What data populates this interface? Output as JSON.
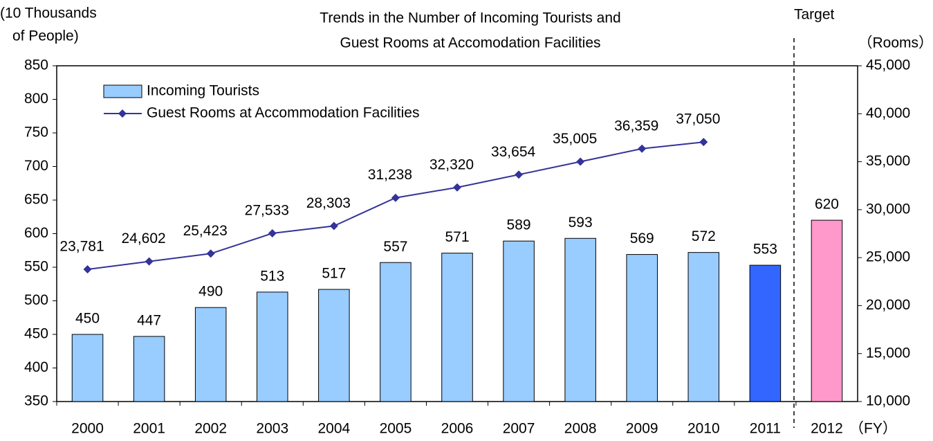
{
  "chart_data": {
    "type": "bar_line",
    "title": [
      "Trends in the Number of Incoming Tourists and",
      "Guest Rooms at Accomodation Facilities"
    ],
    "y_label": [
      "(10 Thousands",
      "of People)"
    ],
    "y2_label": "（Rooms）",
    "x_label": "（FY）",
    "annotation": "Target",
    "categories": [
      "2000",
      "2001",
      "2002",
      "2003",
      "2004",
      "2005",
      "2006",
      "2007",
      "2008",
      "2009",
      "2010",
      "2011",
      "2012"
    ],
    "series": [
      {
        "name": "Incoming Tourists",
        "color": "#99ccff",
        "colors": [
          "#99ccff",
          "#99ccff",
          "#99ccff",
          "#99ccff",
          "#99ccff",
          "#99ccff",
          "#99ccff",
          "#99ccff",
          "#99ccff",
          "#99ccff",
          "#99ccff",
          "#3366ff",
          "#ff99cc"
        ],
        "values": [
          450,
          447,
          490,
          513,
          517,
          557,
          571,
          589,
          593,
          569,
          572,
          553,
          620
        ]
      },
      {
        "name": "Guest Rooms at Accommodation Facilities",
        "color": "#333399",
        "axis": "y2",
        "values": [
          23781,
          24602,
          25423,
          27533,
          28303,
          31238,
          32320,
          33654,
          35005,
          36359,
          37050,
          null,
          null
        ],
        "value_labels": [
          "23,781",
          "24,602",
          "25,423",
          "27,533",
          "28,303",
          "31,238",
          "32,320",
          "33,654",
          "35,005",
          "36,359",
          "37,050",
          null,
          null
        ]
      }
    ],
    "ylim": [
      350,
      850
    ],
    "yticks": [
      350,
      400,
      450,
      500,
      550,
      600,
      650,
      700,
      750,
      800,
      850
    ],
    "y2lim": [
      10000,
      45000
    ],
    "y2ticks": [
      {
        "value": 10000,
        "label": "10,000"
      },
      {
        "value": 15000,
        "label": "15,000"
      },
      {
        "value": 20000,
        "label": "20,000"
      },
      {
        "value": 25000,
        "label": "25,000"
      },
      {
        "value": 30000,
        "label": "30,000"
      },
      {
        "value": 35000,
        "label": "35,000"
      },
      {
        "value": 40000,
        "label": "40,000"
      },
      {
        "value": 45000,
        "label": "45,000"
      }
    ],
    "legend": "upper left"
  }
}
